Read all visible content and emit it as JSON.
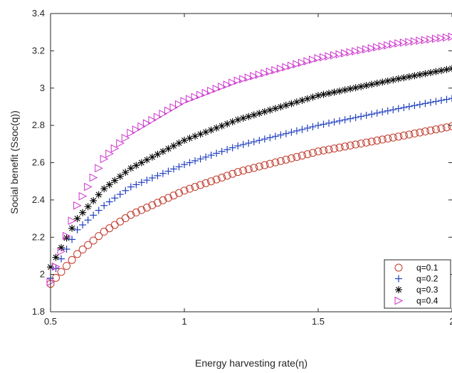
{
  "chart_data": {
    "type": "scatter",
    "title": "",
    "xlabel": "Energy harvesting rate(η)",
    "ylabel": "Social benefit (Ssoc(q))",
    "xlim": [
      0.5,
      2
    ],
    "ylim": [
      1.8,
      3.4
    ],
    "xticks": [
      0.5,
      1,
      1.5,
      2
    ],
    "xtick_labels": [
      "0.5",
      "1",
      "1.5",
      "2"
    ],
    "yticks": [
      1.8,
      2,
      2.2,
      2.4,
      2.6,
      2.8,
      3,
      3.2,
      3.4
    ],
    "ytick_labels": [
      "1.8",
      "2",
      "2.2",
      "2.4",
      "2.6",
      "2.8",
      "3",
      "3.2",
      "3.4"
    ],
    "grid": false,
    "legend_position": "bottom-right",
    "x_start": 0.5,
    "x_end": 2.0,
    "x_step": 0.02,
    "series": [
      {
        "name": "q=0.1",
        "marker": "circle",
        "color": "#c0392b",
        "x": [
          0.5,
          0.6,
          0.7,
          0.8,
          1.0,
          1.2,
          1.5,
          1.8,
          2.0
        ],
        "y": [
          1.95,
          2.11,
          2.23,
          2.32,
          2.45,
          2.55,
          2.66,
          2.74,
          2.795
        ]
      },
      {
        "name": "q=0.2",
        "marker": "plus",
        "color": "#1f3fbf",
        "x": [
          0.5,
          0.6,
          0.7,
          0.8,
          1.0,
          1.2,
          1.5,
          1.8,
          2.0
        ],
        "y": [
          1.98,
          2.24,
          2.37,
          2.47,
          2.59,
          2.69,
          2.8,
          2.89,
          2.945
        ]
      },
      {
        "name": "q=0.3",
        "marker": "asterisk",
        "color": "#000000",
        "x": [
          0.5,
          0.6,
          0.7,
          0.8,
          1.0,
          1.2,
          1.5,
          1.8,
          2.0
        ],
        "y": [
          2.04,
          2.3,
          2.46,
          2.57,
          2.72,
          2.83,
          2.96,
          3.05,
          3.105
        ]
      },
      {
        "name": "q=0.4",
        "marker": "triangle-right",
        "color": "#cc33cc",
        "x": [
          0.5,
          0.6,
          0.7,
          0.8,
          1.0,
          1.2,
          1.5,
          1.8,
          2.0
        ],
        "y": [
          1.96,
          2.37,
          2.62,
          2.76,
          2.93,
          3.04,
          3.16,
          3.24,
          3.275
        ]
      }
    ]
  }
}
